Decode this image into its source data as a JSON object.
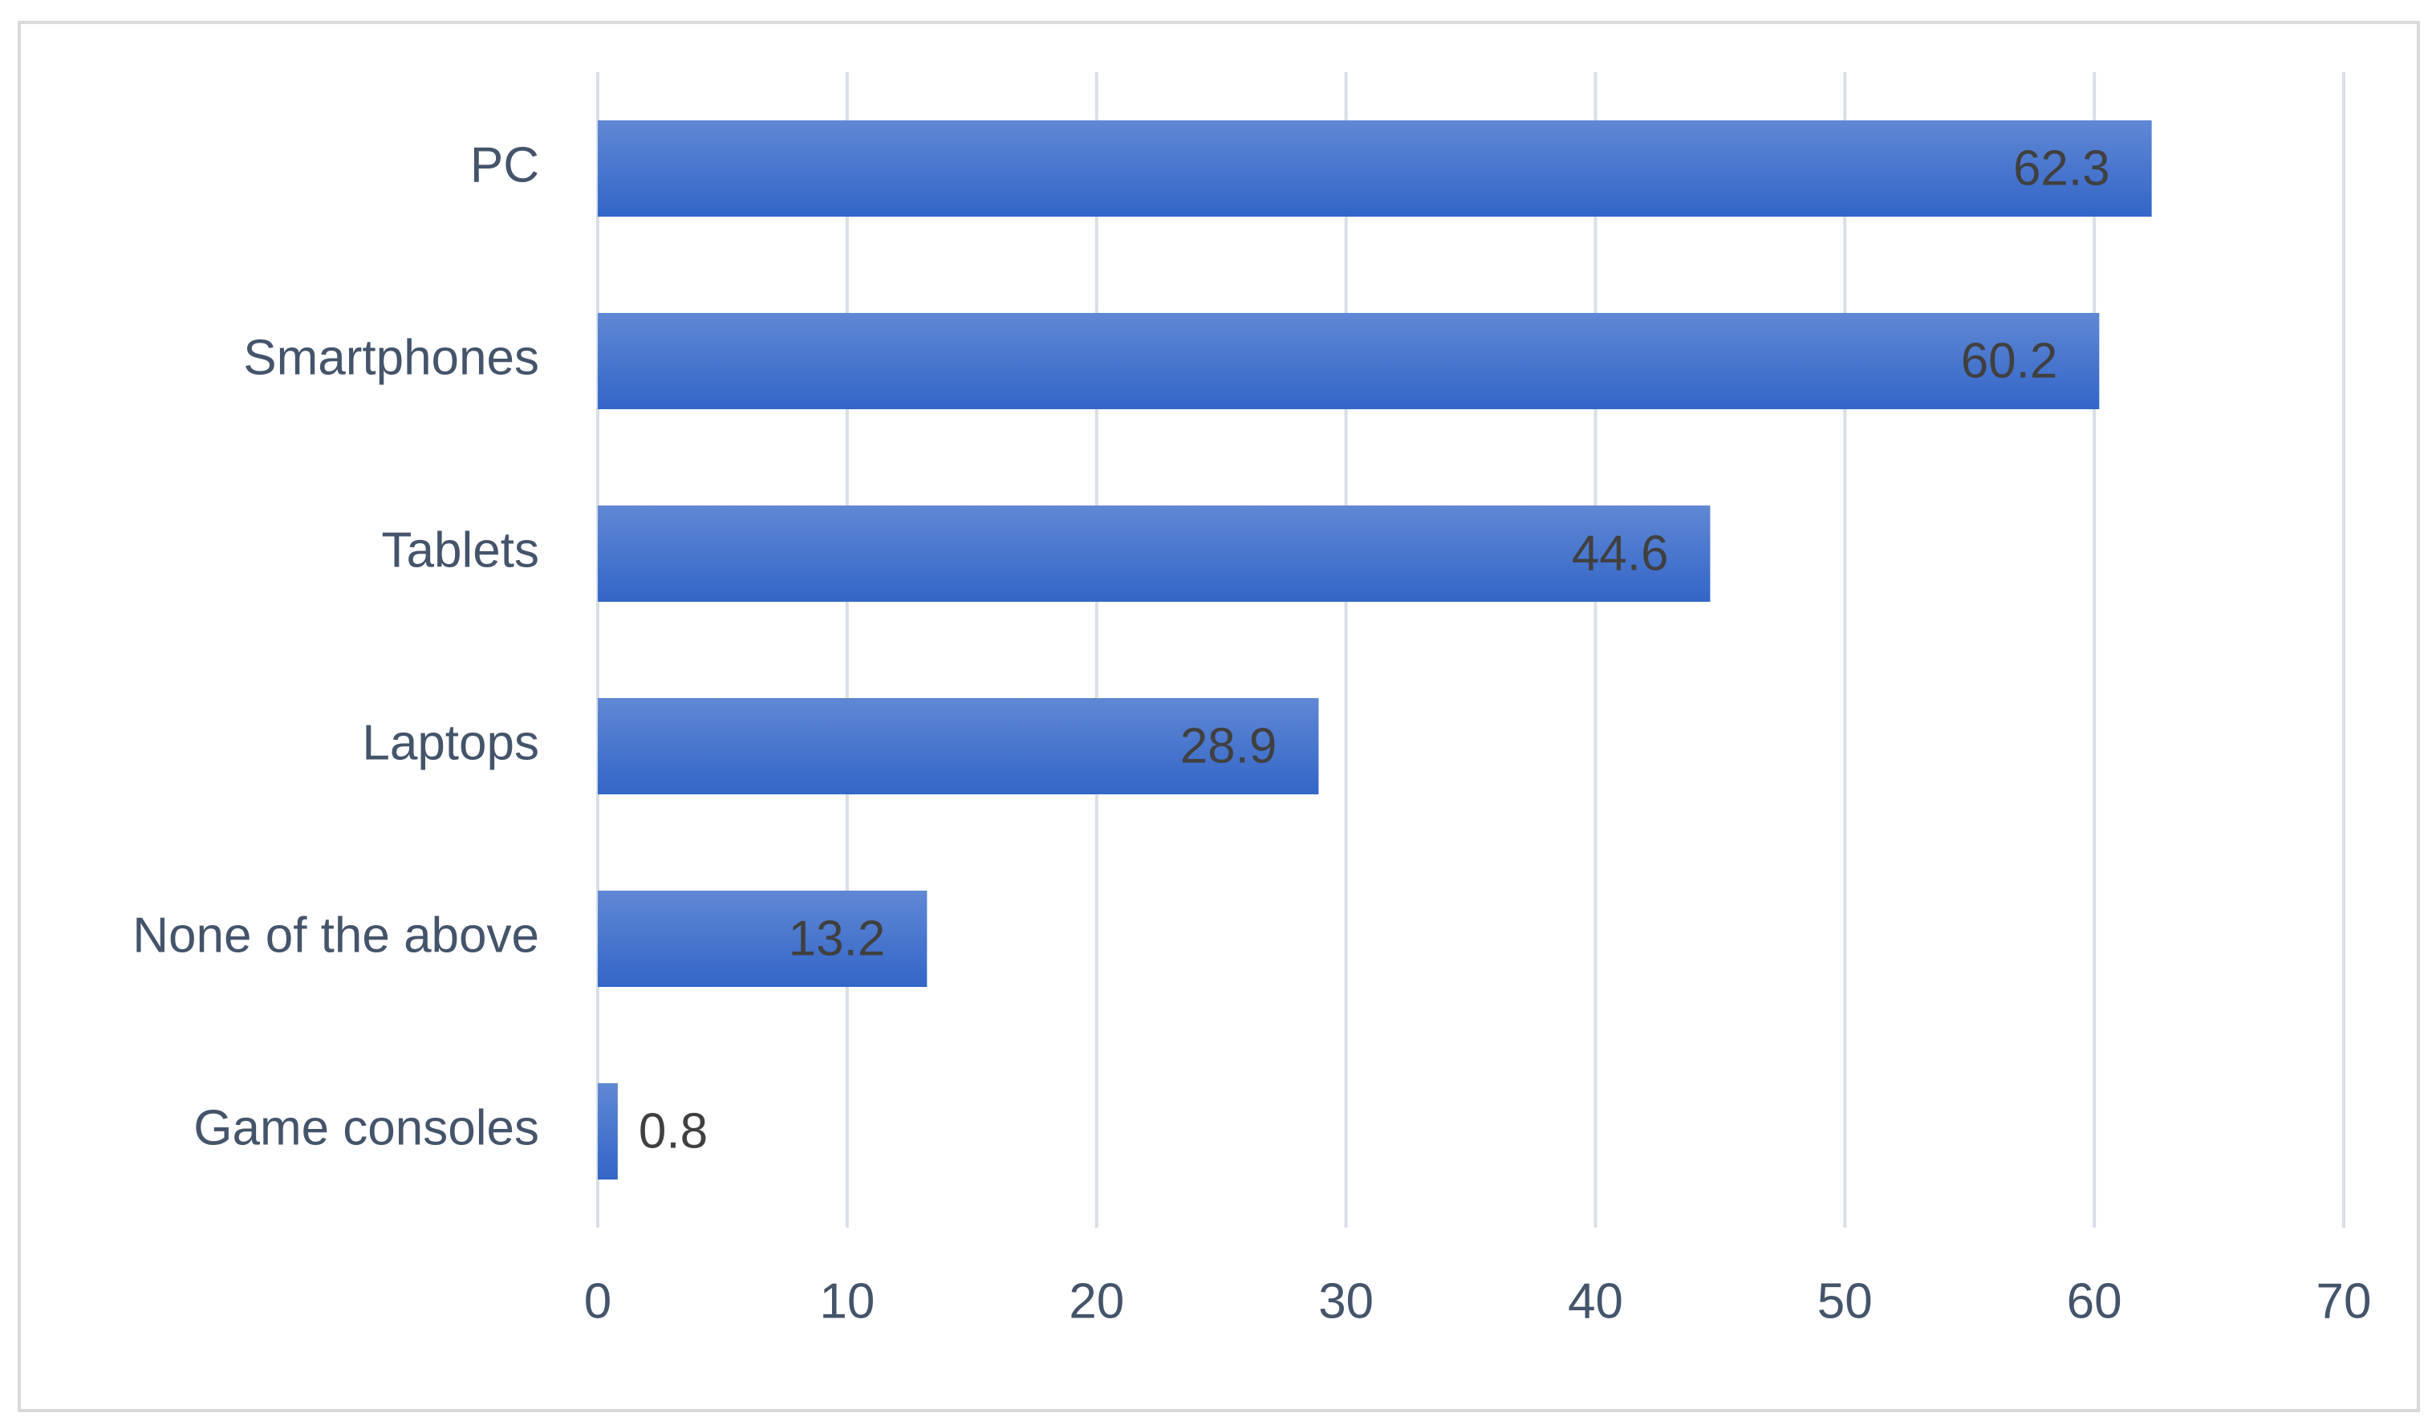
{
  "chart_data": {
    "type": "bar",
    "orientation": "horizontal",
    "categories": [
      "PC",
      "Smartphones",
      "Tablets",
      "Laptops",
      "None of the above",
      "Game consoles"
    ],
    "values": [
      62.3,
      60.2,
      44.6,
      28.9,
      13.2,
      0.8
    ],
    "color": "#3366c8",
    "xlim": [
      0,
      70
    ],
    "xticks": [
      0,
      10,
      20,
      30,
      40,
      50,
      60,
      70
    ],
    "grid": true
  }
}
